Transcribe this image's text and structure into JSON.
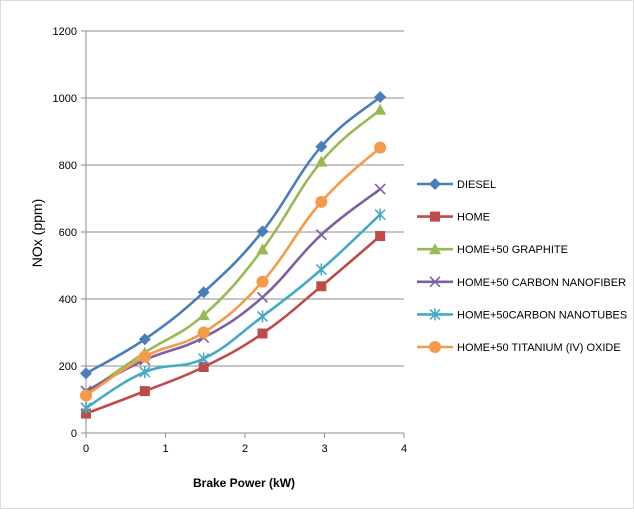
{
  "chart_data": {
    "type": "line",
    "xlabel": "Brake Power (kW)",
    "ylabel": "NOx (ppm)",
    "xlim": [
      0,
      4
    ],
    "ylim": [
      0,
      1200
    ],
    "xticks": [
      "0",
      "1",
      "2",
      "3",
      "4"
    ],
    "yticks": [
      "0",
      "200",
      "400",
      "600",
      "800",
      "1000",
      "1200"
    ],
    "grid": "horizontal",
    "legend_position": "right",
    "x": [
      0,
      0.74,
      1.48,
      2.22,
      2.96,
      3.7
    ],
    "series": [
      {
        "name": "DIESEL",
        "color": "#4a7ebb",
        "marker": "diamond",
        "values": [
          178,
          280,
          420,
          602,
          855,
          1003
        ]
      },
      {
        "name": "HOME",
        "color": "#be4b48",
        "marker": "square",
        "values": [
          58,
          125,
          197,
          297,
          438,
          588
        ]
      },
      {
        "name": "HOME+50 GRAPHITE",
        "color": "#98b954",
        "marker": "triangle",
        "values": [
          120,
          240,
          352,
          548,
          810,
          965
        ]
      },
      {
        "name": "HOME+50 CARBON NANOFIBER",
        "color": "#7d60a0",
        "marker": "x",
        "values": [
          125,
          218,
          285,
          405,
          592,
          728
        ]
      },
      {
        "name": "HOME+50CARBON NANOTUBES",
        "color": "#46aac5",
        "marker": "star",
        "values": [
          75,
          182,
          222,
          348,
          488,
          652
        ]
      },
      {
        "name": "HOME+50 TITANIUM (IV) OXIDE",
        "color": "#f59a4a",
        "marker": "circle",
        "values": [
          112,
          228,
          300,
          452,
          690,
          852
        ]
      }
    ]
  }
}
